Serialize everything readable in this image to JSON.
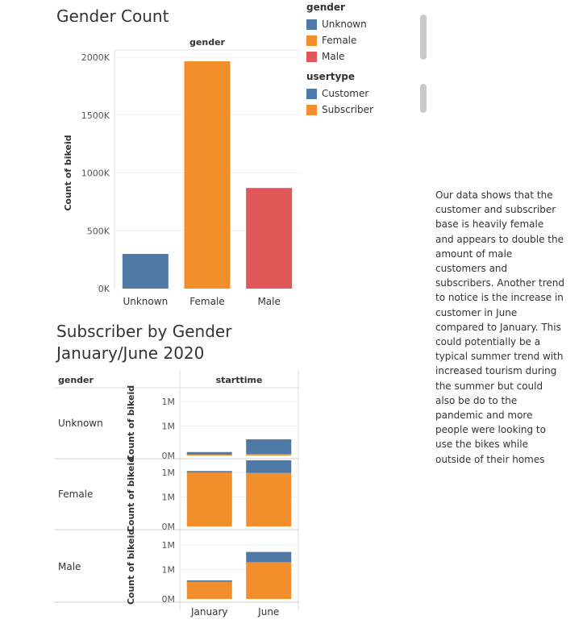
{
  "chart1": {
    "title": "Gender Count",
    "column_header": "gender",
    "ylabel": "Count of bikeid",
    "yticks": [
      "0K",
      "500K",
      "1000K",
      "1500K",
      "2000K"
    ]
  },
  "chart2": {
    "title_line1": "Subscriber by Gender",
    "title_line2": "January/June 2020",
    "row_header": "gender",
    "column_header": "starttime",
    "ylabel": "Count of bikeid",
    "yticks": [
      "0M",
      "1M",
      "1M"
    ]
  },
  "legend": {
    "gender_title": "gender",
    "gender_items": [
      {
        "label": "Unknown",
        "color": "#4e79a7"
      },
      {
        "label": "Female",
        "color": "#f28e2b"
      },
      {
        "label": "Male",
        "color": "#e15759"
      }
    ],
    "usertype_title": "usertype",
    "usertype_items": [
      {
        "label": "Customer",
        "color": "#4e79a7"
      },
      {
        "label": "Subscriber",
        "color": "#f28e2b"
      }
    ]
  },
  "note": "Our data shows that the customer and subscriber base is heavily female and appears to double the amount of male customers and subscribers. Another trend to notice is the increase in customer in June compared to January. This could potentially be a typical summer trend with increased tourism during the summer but could also be do to the pandemic and more people were looking to use the bikes while outside of their homes",
  "chart_data": [
    {
      "type": "bar",
      "title": "Gender Count",
      "categories": [
        "Unknown",
        "Female",
        "Male"
      ],
      "values": [
        300000,
        1965000,
        870000
      ],
      "colors": [
        "#4e79a7",
        "#f28e2b",
        "#e15759"
      ],
      "ylabel": "Count of bikeid",
      "ylim": [
        0,
        2000000
      ]
    },
    {
      "type": "bar",
      "stacked": true,
      "title": "Subscriber by Gender January/June 2020",
      "rows": [
        "Unknown",
        "Female",
        "Male"
      ],
      "categories": [
        "January",
        "June"
      ],
      "ylabel": "Count of bikeid",
      "ylim": [
        0,
        1250000
      ],
      "series": [
        {
          "name": "Customer",
          "color": "#4e79a7",
          "values": {
            "Unknown": [
              50000,
              300000
            ],
            "Female": [
              30000,
              260000
            ],
            "Male": [
              30000,
              210000
            ]
          }
        },
        {
          "name": "Subscriber",
          "color": "#f28e2b",
          "values": {
            "Unknown": [
              20000,
              30000
            ],
            "Female": [
              1100000,
              1090000
            ],
            "Male": [
              350000,
              750000
            ]
          }
        }
      ]
    }
  ]
}
